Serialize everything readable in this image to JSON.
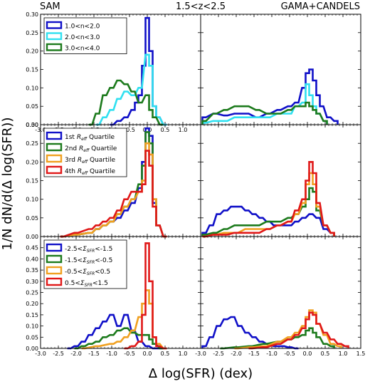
{
  "figure": {
    "header_left": "SAM",
    "header_center": "1.5<z<2.5",
    "header_right": "GAMA+CANDELS",
    "xlabel": "Δ log(SFR) (dex)",
    "ylabel": "1/N dN/d(Δ log(SFR))"
  },
  "chart_data": [
    {
      "type": "histogram",
      "row": 0,
      "col": 0,
      "panel": "SAM",
      "xlim": [
        -3.0,
        1.5
      ],
      "ylim": [
        0,
        0.3
      ],
      "x_ticks": [
        "-3.0",
        "-2.5",
        "-2.0",
        "-1.5",
        "-1.0",
        "-0.5",
        "0.0",
        "0.5",
        "1.0"
      ],
      "y_ticks": [
        "0.00",
        "0.05",
        "0.10",
        "0.15",
        "0.20",
        "0.25",
        "0.30"
      ],
      "legend": {
        "location": "upper right",
        "entries": [
          {
            "label": "1.0<n<2.0",
            "color": "#1010c8"
          },
          {
            "label": "2.0<n<3.0",
            "color": "#30e0f0"
          },
          {
            "label": "3.0<n<4.0",
            "color": "#1c7a1c"
          }
        ]
      },
      "series": [
        {
          "name": "1.0<n<2.0",
          "color": "#1010c8",
          "x": [
            -1.0,
            -0.8,
            -0.6,
            -0.4,
            -0.3,
            -0.2,
            -0.1,
            0.0,
            0.1,
            0.2,
            0.3,
            0.5
          ],
          "y": [
            0.0,
            0.01,
            0.02,
            0.04,
            0.06,
            0.08,
            0.16,
            0.29,
            0.2,
            0.05,
            0.02,
            0.0
          ]
        },
        {
          "name": "2.0<n<3.0",
          "color": "#30e0f0",
          "x": [
            -1.4,
            -1.2,
            -1.0,
            -0.8,
            -0.6,
            -0.4,
            -0.2,
            0.0,
            0.1,
            0.2,
            0.3,
            0.5
          ],
          "y": [
            0.0,
            0.02,
            0.04,
            0.07,
            0.09,
            0.08,
            0.1,
            0.19,
            0.16,
            0.05,
            0.02,
            0.0
          ]
        },
        {
          "name": "3.0<n<4.0",
          "color": "#1c7a1c",
          "x": [
            -1.6,
            -1.4,
            -1.2,
            -1.0,
            -0.8,
            -0.6,
            -0.4,
            -0.2,
            0.0,
            0.1,
            0.2,
            0.4
          ],
          "y": [
            0.0,
            0.03,
            0.08,
            0.1,
            0.12,
            0.11,
            0.09,
            0.06,
            0.08,
            0.04,
            0.02,
            0.0
          ]
        }
      ]
    },
    {
      "type": "histogram",
      "row": 0,
      "col": 1,
      "panel": "GAMA+CANDELS",
      "xlim": [
        -3.0,
        1.5
      ],
      "ylim": [
        0,
        0.3
      ],
      "series": [
        {
          "name": "1.0<n<2.0",
          "color": "#1010c8",
          "x": [
            -2.9,
            -2.6,
            -2.3,
            -2.0,
            -1.7,
            -1.4,
            -1.1,
            -0.8,
            -0.5,
            -0.3,
            -0.1,
            0.0,
            0.1,
            0.2,
            0.3,
            0.4,
            0.6,
            0.8
          ],
          "y": [
            0.02,
            0.03,
            0.025,
            0.03,
            0.03,
            0.02,
            0.03,
            0.04,
            0.05,
            0.06,
            0.1,
            0.14,
            0.15,
            0.12,
            0.08,
            0.05,
            0.02,
            0.01
          ]
        },
        {
          "name": "2.0<n<3.0",
          "color": "#30e0f0",
          "x": [
            -2.9,
            -2.6,
            -2.3,
            -2.0,
            -1.7,
            -1.4,
            -1.1,
            -0.8,
            -0.5,
            -0.3,
            -0.1,
            0.0,
            0.1,
            0.2,
            0.3,
            0.5
          ],
          "y": [
            0.005,
            0.01,
            0.01,
            0.02,
            0.02,
            0.02,
            0.02,
            0.03,
            0.03,
            0.05,
            0.06,
            0.11,
            0.08,
            0.05,
            0.03,
            0.01
          ]
        },
        {
          "name": "3.0<n<4.0",
          "color": "#1c7a1c",
          "x": [
            -2.9,
            -2.6,
            -2.3,
            -2.0,
            -1.7,
            -1.4,
            -1.1,
            -0.8,
            -0.5,
            -0.3,
            -0.1,
            0.0,
            0.1,
            0.2,
            0.3,
            0.5
          ],
          "y": [
            0.01,
            0.03,
            0.04,
            0.05,
            0.05,
            0.04,
            0.03,
            0.03,
            0.04,
            0.05,
            0.05,
            0.06,
            0.05,
            0.04,
            0.03,
            0.01
          ]
        }
      ]
    },
    {
      "type": "histogram",
      "row": 1,
      "col": 0,
      "panel": "SAM",
      "xlim": [
        -3.0,
        1.5
      ],
      "ylim": [
        0,
        0.3
      ],
      "y_ticks": [
        "0.00",
        "0.05",
        "0.10",
        "0.15",
        "0.20",
        "0.25",
        "0.30"
      ],
      "legend": {
        "location": "upper right",
        "entries": [
          {
            "label": "1st R_eff Quartile",
            "color": "#1010c8"
          },
          {
            "label": "2nd R_eff Quartile",
            "color": "#1c7a1c"
          },
          {
            "label": "3rd R_eff Quartile",
            "color": "#f0a020"
          },
          {
            "label": "4th R_eff Quartile",
            "color": "#e01818"
          }
        ]
      },
      "series": [
        {
          "name": "1st R_eff Quartile",
          "color": "#1010c8",
          "x": [
            -2.4,
            -2.0,
            -1.6,
            -1.4,
            -1.2,
            -1.0,
            -0.8,
            -0.6,
            -0.4,
            -0.2,
            -0.1,
            0.0,
            0.1,
            0.2,
            0.3,
            0.5
          ],
          "y": [
            0.0,
            0.005,
            0.01,
            0.02,
            0.03,
            0.04,
            0.05,
            0.07,
            0.09,
            0.13,
            0.2,
            0.29,
            0.27,
            0.09,
            0.03,
            0.0
          ]
        },
        {
          "name": "2nd R_eff Quartile",
          "color": "#1c7a1c",
          "x": [
            -2.4,
            -2.0,
            -1.6,
            -1.4,
            -1.2,
            -1.0,
            -0.8,
            -0.6,
            -0.4,
            -0.2,
            -0.1,
            0.0,
            0.1,
            0.2,
            0.3,
            0.5
          ],
          "y": [
            0.0,
            0.005,
            0.01,
            0.02,
            0.03,
            0.04,
            0.06,
            0.08,
            0.1,
            0.14,
            0.19,
            0.28,
            0.25,
            0.1,
            0.03,
            0.0
          ]
        },
        {
          "name": "3rd R_eff Quartile",
          "color": "#f0a020",
          "x": [
            -2.4,
            -2.0,
            -1.6,
            -1.4,
            -1.2,
            -1.0,
            -0.8,
            -0.6,
            -0.4,
            -0.2,
            -0.1,
            0.0,
            0.1,
            0.2,
            0.3,
            0.5
          ],
          "y": [
            0.0,
            0.005,
            0.01,
            0.02,
            0.03,
            0.04,
            0.06,
            0.08,
            0.1,
            0.12,
            0.15,
            0.25,
            0.22,
            0.1,
            0.03,
            0.0
          ]
        },
        {
          "name": "4th R_eff Quartile",
          "color": "#e01818",
          "x": [
            -2.4,
            -2.0,
            -1.6,
            -1.4,
            -1.2,
            -1.0,
            -0.8,
            -0.6,
            -0.4,
            -0.2,
            -0.1,
            0.0,
            0.1,
            0.2,
            0.3,
            0.5
          ],
          "y": [
            0.0,
            0.01,
            0.02,
            0.03,
            0.04,
            0.05,
            0.07,
            0.1,
            0.12,
            0.12,
            0.14,
            0.23,
            0.19,
            0.08,
            0.03,
            0.0
          ]
        }
      ]
    },
    {
      "type": "histogram",
      "row": 1,
      "col": 1,
      "panel": "GAMA+CANDELS",
      "xlim": [
        -3.0,
        1.5
      ],
      "ylim": [
        0,
        0.3
      ],
      "series": [
        {
          "name": "1st R_eff Quartile",
          "color": "#1010c8",
          "x": [
            -2.9,
            -2.7,
            -2.5,
            -2.3,
            -2.1,
            -1.9,
            -1.7,
            -1.5,
            -1.3,
            -1.1,
            -0.9,
            -0.7,
            -0.5,
            -0.3,
            -0.1,
            0.1,
            0.3,
            0.5,
            0.7
          ],
          "y": [
            0.01,
            0.03,
            0.06,
            0.07,
            0.08,
            0.08,
            0.07,
            0.06,
            0.05,
            0.04,
            0.03,
            0.03,
            0.03,
            0.04,
            0.05,
            0.06,
            0.05,
            0.02,
            0.01
          ]
        },
        {
          "name": "2nd R_eff Quartile",
          "color": "#1c7a1c",
          "x": [
            -2.9,
            -2.6,
            -2.3,
            -2.0,
            -1.7,
            -1.4,
            -1.1,
            -0.8,
            -0.5,
            -0.3,
            -0.1,
            0.0,
            0.1,
            0.2,
            0.3,
            0.5,
            0.7
          ],
          "y": [
            0.005,
            0.01,
            0.02,
            0.03,
            0.03,
            0.03,
            0.04,
            0.04,
            0.05,
            0.06,
            0.08,
            0.1,
            0.13,
            0.12,
            0.07,
            0.03,
            0.01
          ]
        },
        {
          "name": "3rd R_eff Quartile",
          "color": "#f0a020",
          "x": [
            -2.9,
            -2.6,
            -2.3,
            -2.0,
            -1.7,
            -1.4,
            -1.1,
            -0.8,
            -0.5,
            -0.3,
            -0.1,
            0.0,
            0.1,
            0.2,
            0.3,
            0.5,
            0.7
          ],
          "y": [
            0.0,
            0.005,
            0.01,
            0.01,
            0.02,
            0.02,
            0.02,
            0.03,
            0.04,
            0.06,
            0.09,
            0.14,
            0.17,
            0.14,
            0.08,
            0.03,
            0.01
          ]
        },
        {
          "name": "4th R_eff Quartile",
          "color": "#e01818",
          "x": [
            -2.9,
            -2.6,
            -2.3,
            -2.0,
            -1.7,
            -1.4,
            -1.1,
            -0.8,
            -0.5,
            -0.3,
            -0.1,
            0.0,
            0.1,
            0.2,
            0.3,
            0.5,
            0.7
          ],
          "y": [
            0.0,
            0.005,
            0.005,
            0.01,
            0.01,
            0.01,
            0.02,
            0.03,
            0.04,
            0.07,
            0.1,
            0.15,
            0.2,
            0.17,
            0.09,
            0.03,
            0.01
          ]
        }
      ]
    },
    {
      "type": "histogram",
      "row": 2,
      "col": 0,
      "panel": "SAM",
      "xlim": [
        -3.0,
        1.5
      ],
      "ylim": [
        0,
        0.5
      ],
      "x_ticks": [
        "-3.0",
        "-2.5",
        "-2.0",
        "-1.5",
        "-1.0",
        "-0.5",
        "0.0",
        "0.5",
        "1.0"
      ],
      "y_ticks": [
        "0.00",
        "0.05",
        "0.10",
        "0.15",
        "0.20",
        "0.25",
        "0.30",
        "0.35",
        "0.40",
        "0.45"
      ],
      "legend": {
        "location": "upper right",
        "entries": [
          {
            "label": "-2.5<Σ_SFR<-1.5",
            "color": "#1010c8"
          },
          {
            "label": "-1.5<Σ_SFR<-0.5",
            "color": "#1c7a1c"
          },
          {
            "label": "-0.5<Σ_SFR<0.5",
            "color": "#f0a020"
          },
          {
            "label": "0.5<Σ_SFR<1.5",
            "color": "#e01818"
          }
        ]
      },
      "series": [
        {
          "name": "-2.5<Σ_SFR<-1.5",
          "color": "#1010c8",
          "x": [
            -2.2,
            -2.0,
            -1.8,
            -1.6,
            -1.4,
            -1.2,
            -1.0,
            -0.8,
            -0.6,
            -0.4,
            -0.2,
            0.0,
            0.2,
            0.4
          ],
          "y": [
            0.0,
            0.01,
            0.03,
            0.06,
            0.09,
            0.12,
            0.15,
            0.1,
            0.15,
            0.08,
            0.03,
            0.01,
            0.0,
            0.0
          ]
        },
        {
          "name": "-1.5<Σ_SFR<-0.5",
          "color": "#1c7a1c",
          "x": [
            -2.0,
            -1.8,
            -1.6,
            -1.4,
            -1.2,
            -1.0,
            -0.8,
            -0.6,
            -0.4,
            -0.2,
            0.0,
            0.1,
            0.2,
            0.4
          ],
          "y": [
            0.0,
            0.01,
            0.02,
            0.03,
            0.05,
            0.06,
            0.08,
            0.09,
            0.07,
            0.06,
            0.06,
            0.04,
            0.02,
            0.0
          ]
        },
        {
          "name": "-0.5<Σ_SFR<0.5",
          "color": "#f0a020",
          "x": [
            -1.8,
            -1.4,
            -1.0,
            -0.8,
            -0.6,
            -0.4,
            -0.2,
            -0.1,
            0.0,
            0.1,
            0.2,
            0.3,
            0.5
          ],
          "y": [
            0.0,
            0.01,
            0.02,
            0.03,
            0.05,
            0.08,
            0.14,
            0.2,
            0.26,
            0.2,
            0.05,
            0.02,
            0.0
          ]
        },
        {
          "name": "0.5<Σ_SFR<1.5",
          "color": "#e01818",
          "x": [
            -0.6,
            -0.4,
            -0.2,
            -0.1,
            0.0,
            0.1,
            0.2,
            0.3,
            0.5
          ],
          "y": [
            0.0,
            0.01,
            0.03,
            0.15,
            0.47,
            0.3,
            0.05,
            0.01,
            0.0
          ]
        }
      ]
    },
    {
      "type": "histogram",
      "row": 2,
      "col": 1,
      "panel": "GAMA+CANDELS",
      "xlim": [
        -3.0,
        1.5
      ],
      "ylim": [
        0,
        0.5
      ],
      "x_ticks": [
        "-3.0",
        "-2.5",
        "-2.0",
        "-1.5",
        "-1.0",
        "-0.5",
        "0.0",
        "0.5",
        "1.0",
        "1.5"
      ],
      "series": [
        {
          "name": "-2.5<Σ_SFR<-1.5",
          "color": "#1010c8",
          "x": [
            -2.9,
            -2.7,
            -2.5,
            -2.3,
            -2.1,
            -1.9,
            -1.7,
            -1.5,
            -1.3,
            -1.1,
            -0.9,
            -0.7,
            -0.5,
            -0.3
          ],
          "y": [
            0.01,
            0.05,
            0.1,
            0.13,
            0.14,
            0.1,
            0.07,
            0.05,
            0.03,
            0.02,
            0.01,
            0.01,
            0.005,
            0.0
          ]
        },
        {
          "name": "-1.5<Σ_SFR<-0.5",
          "color": "#1c7a1c",
          "x": [
            -2.4,
            -2.0,
            -1.6,
            -1.2,
            -0.8,
            -0.5,
            -0.3,
            -0.1,
            0.0,
            0.1,
            0.2,
            0.3,
            0.5,
            0.7
          ],
          "y": [
            0.0,
            0.005,
            0.01,
            0.02,
            0.03,
            0.04,
            0.05,
            0.06,
            0.08,
            0.09,
            0.07,
            0.05,
            0.02,
            0.01
          ]
        },
        {
          "name": "-0.5<Σ_SFR<0.5",
          "color": "#f0a020",
          "x": [
            -2.0,
            -1.6,
            -1.2,
            -0.8,
            -0.5,
            -0.3,
            -0.1,
            0.0,
            0.1,
            0.2,
            0.3,
            0.5,
            0.7,
            0.9
          ],
          "y": [
            0.0,
            0.005,
            0.01,
            0.03,
            0.05,
            0.07,
            0.1,
            0.14,
            0.17,
            0.16,
            0.11,
            0.06,
            0.02,
            0.01
          ]
        },
        {
          "name": "0.5<Σ_SFR<1.5",
          "color": "#e01818",
          "x": [
            -1.6,
            -1.2,
            -0.8,
            -0.5,
            -0.3,
            -0.1,
            0.0,
            0.1,
            0.2,
            0.3,
            0.5,
            0.7,
            0.9,
            1.1
          ],
          "y": [
            0.0,
            0.005,
            0.02,
            0.04,
            0.06,
            0.09,
            0.13,
            0.16,
            0.15,
            0.11,
            0.07,
            0.04,
            0.02,
            0.01
          ]
        }
      ]
    }
  ]
}
